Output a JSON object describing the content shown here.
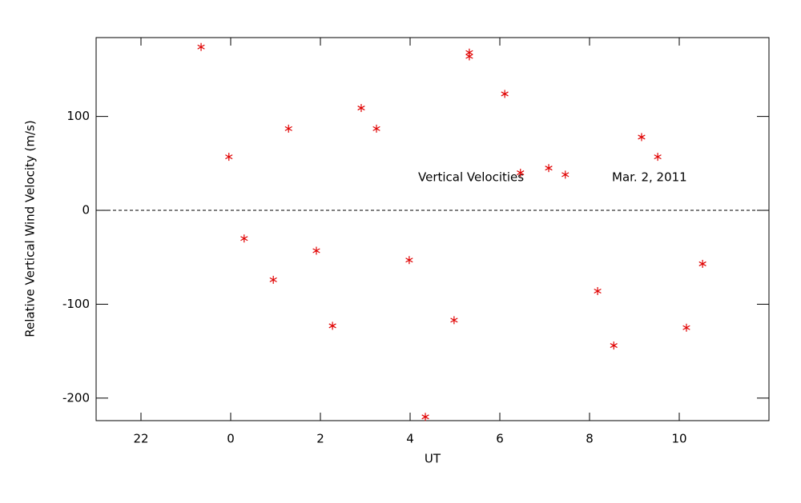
{
  "chart_data": {
    "type": "scatter",
    "x_label": "UT",
    "y_label": "Relative Vertical Wind Velocity (m/s)",
    "annotations": [
      "Vertical Velocities",
      "Mar. 2, 2011"
    ],
    "color": "#e00000",
    "marker": "asterisk",
    "reference_line": 0,
    "xlim": [
      -3,
      12
    ],
    "xticks": [
      {
        "value": -2,
        "label": "22"
      },
      0,
      2,
      4,
      6,
      8,
      10
    ],
    "ylim": [
      -224,
      184
    ],
    "yticks": [
      -200,
      -100,
      0,
      100
    ],
    "x": [
      -0.66,
      -0.04,
      0.3,
      0.95,
      1.29,
      1.91,
      2.27,
      2.91,
      3.25,
      3.98,
      4.34,
      4.98,
      5.32,
      5.32,
      6.11,
      6.46,
      7.09,
      7.46,
      8.18,
      8.54,
      9.16,
      9.52,
      10.16,
      10.52
    ],
    "values": [
      174,
      57,
      -30,
      -74,
      87,
      -43,
      -123,
      109,
      87,
      -53,
      -220,
      -117,
      168,
      164,
      124,
      40,
      45,
      38,
      -86,
      -144,
      78,
      57,
      -125,
      -57
    ]
  }
}
